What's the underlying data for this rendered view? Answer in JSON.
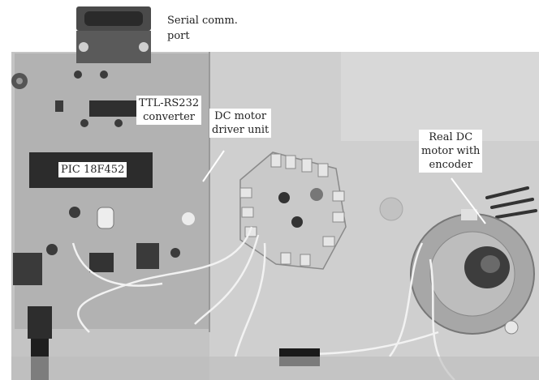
{
  "labels": {
    "serial_line1": "Serial comm.",
    "serial_line2": "port",
    "ttl_line1": "TTL-RS232",
    "ttl_line2": "converter",
    "driver_line1": "DC motor",
    "driver_line2": "driver unit",
    "pic": "PIC 18F452",
    "motor_line1": "Real DC",
    "motor_line2": "motor with",
    "motor_line3": "encoder"
  },
  "colors": {
    "background": "#ffffff",
    "board": "#bdbdbd",
    "text": "#222222"
  }
}
